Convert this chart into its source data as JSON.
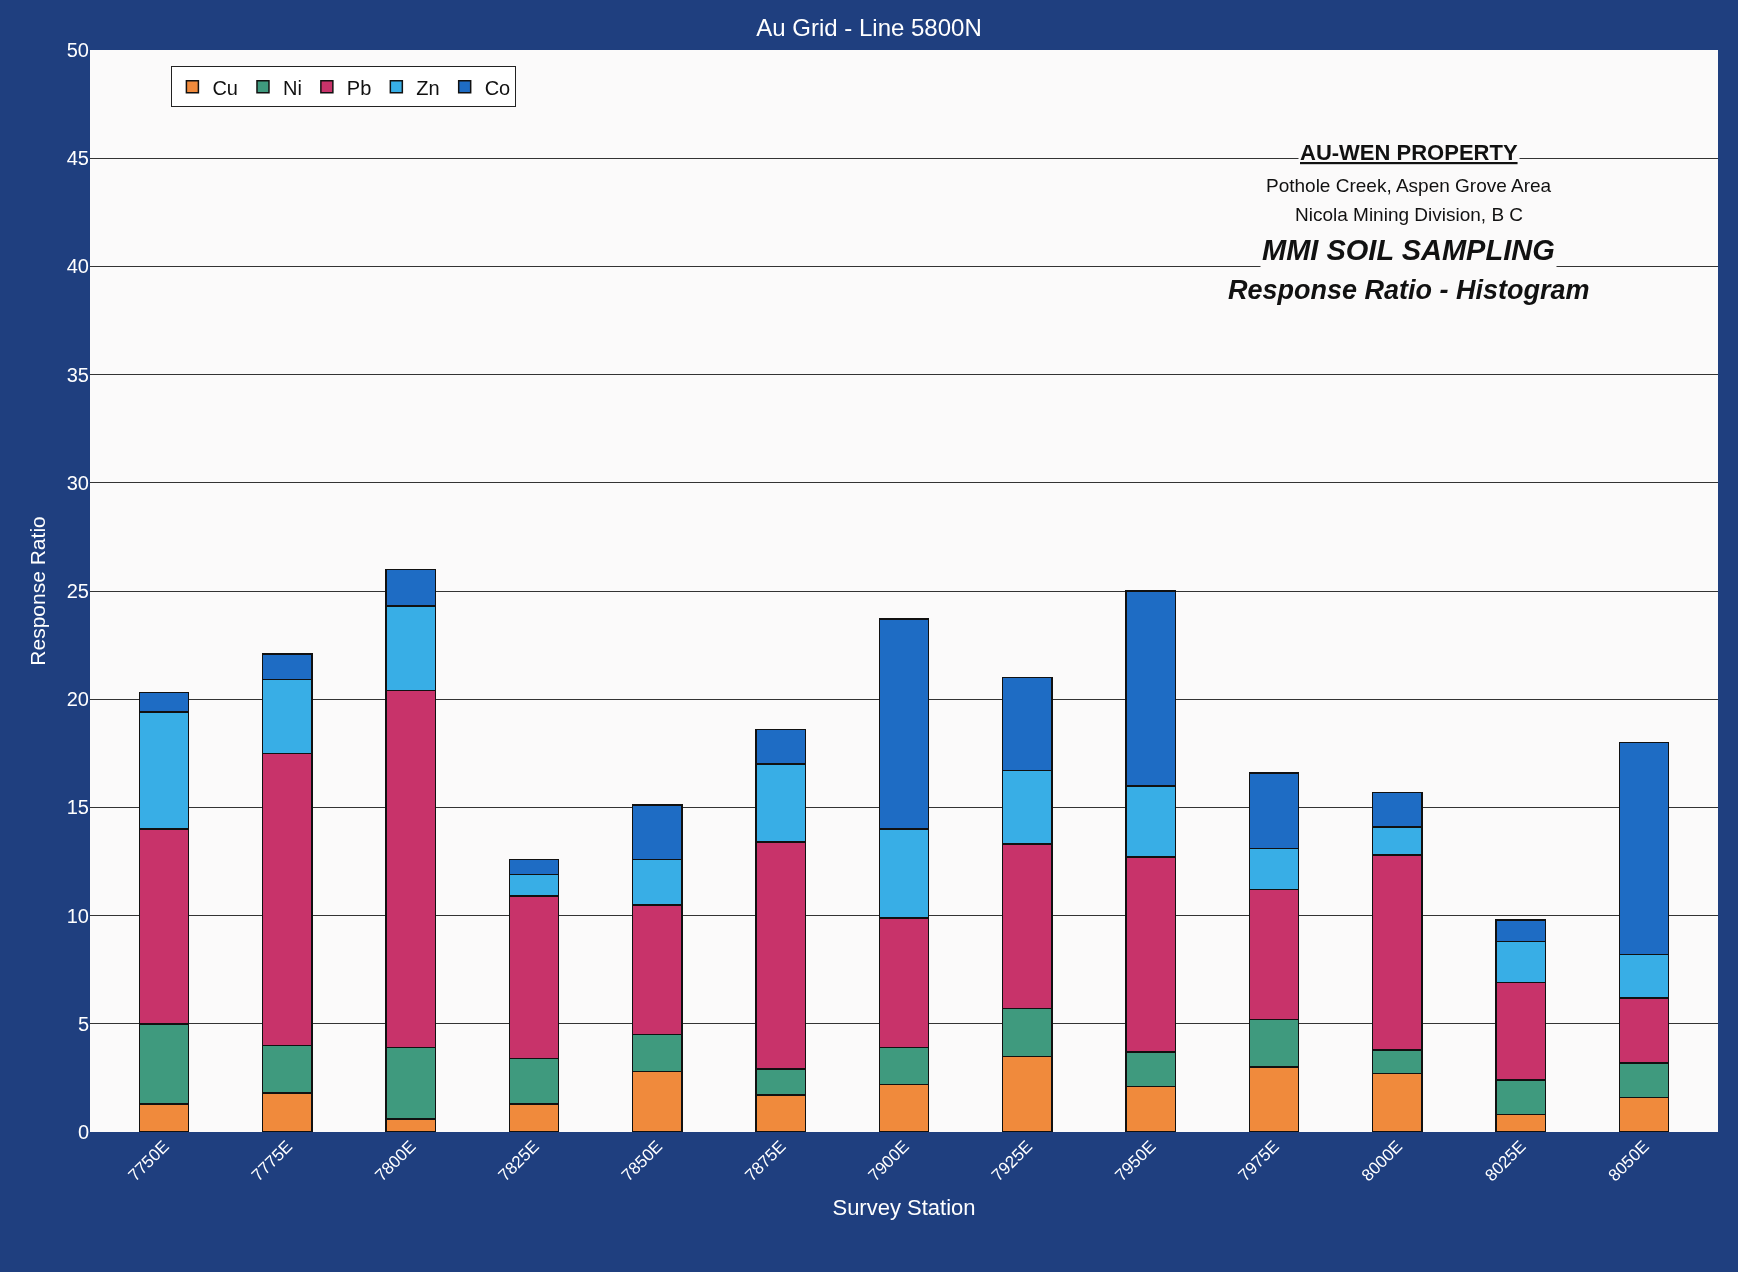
{
  "chart_data": {
    "type": "bar",
    "stacked": true,
    "title": "Au Grid - Line 5800N",
    "xlabel": "Survey Station",
    "ylabel": "Response Ratio",
    "categories": [
      "7750E",
      "7775E",
      "7800E",
      "7825E",
      "7850E",
      "7875E",
      "7900E",
      "7925E",
      "7950E",
      "7975E",
      "8000E",
      "8025E",
      "8050E"
    ],
    "series": [
      {
        "name": "Cu",
        "color": "#f08a3c",
        "values": [
          1.3,
          1.8,
          0.6,
          1.3,
          2.8,
          1.7,
          2.2,
          3.5,
          2.1,
          3.0,
          2.7,
          0.8,
          1.6
        ]
      },
      {
        "name": "Ni",
        "color": "#3f9a7e",
        "values": [
          3.7,
          2.2,
          3.3,
          2.1,
          1.7,
          1.2,
          1.7,
          2.2,
          1.6,
          2.2,
          1.1,
          1.6,
          1.6
        ]
      },
      {
        "name": "Pb",
        "color": "#c8336a",
        "values": [
          9.0,
          13.5,
          16.5,
          7.5,
          6.0,
          10.5,
          6.0,
          7.6,
          9.0,
          6.0,
          9.0,
          4.5,
          3.0
        ]
      },
      {
        "name": "Zn",
        "color": "#38aee6",
        "values": [
          5.4,
          3.4,
          3.9,
          1.0,
          2.1,
          3.6,
          4.1,
          3.4,
          3.3,
          1.9,
          1.3,
          1.9,
          2.0
        ]
      },
      {
        "name": "Co",
        "color": "#1e6cc4",
        "values": [
          0.9,
          1.2,
          1.7,
          0.7,
          2.5,
          1.6,
          9.7,
          4.3,
          9.0,
          3.5,
          1.6,
          1.0,
          9.8
        ]
      }
    ],
    "ylim": [
      0,
      50
    ],
    "yticks": [
      0,
      5,
      10,
      15,
      20,
      25,
      30,
      35,
      40,
      45,
      50
    ],
    "grid": "y",
    "legend": "top left",
    "annotations": [
      "AU-WEN PROPERTY",
      "Pothole Creek, Aspen Grove Area",
      "Nicola Mining Division, B C",
      "MMI SOIL SAMPLING",
      "Response Ratio - Histogram"
    ]
  }
}
